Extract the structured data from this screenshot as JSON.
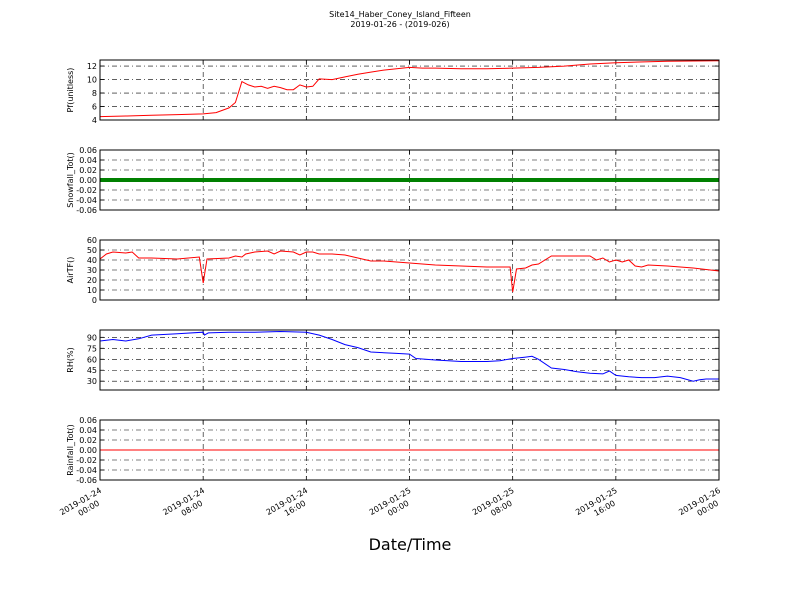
{
  "chart_data": [
    {
      "type": "line",
      "title": "Site14_Haber_Coney_Island_Fifteen",
      "subtitle": "2019-01-26 - (2019-026)",
      "ylabel": "Pf(unitless)",
      "color": "#ff0000",
      "x": [
        "2019-01-24 00:00",
        "2019-01-24 02:00",
        "2019-01-24 04:00",
        "2019-01-24 06:00",
        "2019-01-24 08:00",
        "2019-01-24 09:00",
        "2019-01-24 10:00",
        "2019-01-24 10:30",
        "2019-01-24 11:00",
        "2019-01-24 11:30",
        "2019-01-24 12:00",
        "2019-01-24 12:30",
        "2019-01-24 13:00",
        "2019-01-24 13:30",
        "2019-01-24 14:00",
        "2019-01-24 14:30",
        "2019-01-24 15:00",
        "2019-01-24 15:30",
        "2019-01-24 16:00",
        "2019-01-24 16:30",
        "2019-01-24 17:00",
        "2019-01-24 18:00",
        "2019-01-24 19:00",
        "2019-01-24 20:00",
        "2019-01-24 21:00",
        "2019-01-24 22:00",
        "2019-01-24 23:00",
        "2019-01-25 00:00",
        "2019-01-25 01:00",
        "2019-01-25 02:00",
        "2019-01-25 04:00",
        "2019-01-25 06:00",
        "2019-01-25 08:00",
        "2019-01-25 10:00",
        "2019-01-25 12:00",
        "2019-01-25 14:00",
        "2019-01-25 16:00",
        "2019-01-25 20:00",
        "2019-01-26 00:00"
      ],
      "values": [
        4.5,
        4.6,
        4.7,
        4.8,
        4.9,
        5.1,
        5.8,
        6.6,
        9.7,
        9.2,
        8.9,
        9.0,
        8.7,
        9.0,
        8.8,
        8.5,
        8.5,
        9.2,
        8.9,
        9.0,
        10.1,
        10.0,
        10.4,
        10.8,
        11.1,
        11.4,
        11.6,
        11.8,
        11.7,
        11.7,
        11.6,
        11.6,
        11.7,
        11.8,
        12.0,
        12.3,
        12.5,
        12.7,
        12.8
      ],
      "xlim": [
        "2019-01-24 00:00",
        "2019-01-26 00:00"
      ],
      "ylim": [
        4,
        12.9
      ],
      "yticks": [
        4,
        6,
        8,
        10,
        12
      ],
      "grid": true
    },
    {
      "type": "line",
      "ylabel": "Snowfall_Tot()",
      "color": "#008000",
      "linewidth": 4,
      "x": [
        "2019-01-24 00:00",
        "2019-01-26 00:00"
      ],
      "values": [
        0,
        0
      ],
      "xlim": [
        "2019-01-24 00:00",
        "2019-01-26 00:00"
      ],
      "ylim": [
        -0.06,
        0.06
      ],
      "yticks": [
        0.06,
        0.04,
        0.02,
        {
          "value": 0,
          "label": "0.00"
        },
        -0.02,
        -0.04,
        -0.06
      ],
      "grid": true
    },
    {
      "type": "line",
      "ylabel": "AirTF()",
      "color": "#ff0000",
      "x": [
        "2019-01-24 00:00",
        "2019-01-24 00:30",
        "2019-01-24 01:00",
        "2019-01-24 02:00",
        "2019-01-24 02:30",
        "2019-01-24 03:00",
        "2019-01-24 04:00",
        "2019-01-24 06:00",
        "2019-01-24 07:42",
        "2019-01-24 08:00",
        "2019-01-24 08:18",
        "2019-01-24 10:00",
        "2019-01-24 10:30",
        "2019-01-24 11:00",
        "2019-01-24 11:18",
        "2019-01-24 12:00",
        "2019-01-24 13:00",
        "2019-01-24 13:30",
        "2019-01-24 14:00",
        "2019-01-24 15:00",
        "2019-01-24 15:30",
        "2019-01-24 16:00",
        "2019-01-24 16:30",
        "2019-01-24 17:00",
        "2019-01-24 18:00",
        "2019-01-24 19:00",
        "2019-01-24 20:00",
        "2019-01-24 21:00",
        "2019-01-24 22:00",
        "2019-01-24 23:00",
        "2019-01-25 00:00",
        "2019-01-25 02:00",
        "2019-01-25 04:00",
        "2019-01-25 06:00",
        "2019-01-25 07:48",
        "2019-01-25 08:00",
        "2019-01-25 08:18",
        "2019-01-25 09:00",
        "2019-01-25 09:30",
        "2019-01-25 10:00",
        "2019-01-25 11:00",
        "2019-01-25 12:00",
        "2019-01-25 13:00",
        "2019-01-25 14:00",
        "2019-01-25 14:30",
        "2019-01-25 15:00",
        "2019-01-25 15:30",
        "2019-01-25 16:00",
        "2019-01-25 16:30",
        "2019-01-25 17:00",
        "2019-01-25 17:30",
        "2019-01-25 18:00",
        "2019-01-25 18:30",
        "2019-01-25 20:00",
        "2019-01-25 22:00",
        "2019-01-26 00:00"
      ],
      "values": [
        41,
        46,
        48,
        47,
        48,
        42,
        42,
        41,
        43,
        17,
        41,
        42,
        44,
        43,
        46,
        48,
        49,
        46,
        49,
        48,
        45,
        48,
        48,
        46,
        46,
        45,
        42,
        39,
        39,
        38,
        37,
        35,
        34,
        33,
        33,
        8,
        31,
        32,
        35,
        36,
        44,
        44,
        44,
        44,
        40,
        42,
        38,
        40,
        38,
        40,
        34,
        33,
        35,
        34,
        32,
        29
      ],
      "xlim": [
        "2019-01-24 00:00",
        "2019-01-26 00:00"
      ],
      "ylim": [
        0,
        60
      ],
      "yticks": [
        0,
        10,
        20,
        30,
        40,
        50,
        60
      ],
      "grid": true
    },
    {
      "type": "line",
      "ylabel": "RH(%)",
      "color": "#0000ff",
      "x": [
        "2019-01-24 00:00",
        "2019-01-24 01:00",
        "2019-01-24 02:00",
        "2019-01-24 03:00",
        "2019-01-24 04:00",
        "2019-01-24 06:00",
        "2019-01-24 08:00",
        "2019-01-24 08:06",
        "2019-01-24 08:24",
        "2019-01-24 10:00",
        "2019-01-24 12:00",
        "2019-01-24 14:00",
        "2019-01-24 16:00",
        "2019-01-24 17:00",
        "2019-01-24 18:00",
        "2019-01-24 19:00",
        "2019-01-24 20:00",
        "2019-01-24 21:00",
        "2019-01-24 22:00",
        "2019-01-24 23:00",
        "2019-01-25 00:00",
        "2019-01-25 00:30",
        "2019-01-25 02:00",
        "2019-01-25 04:00",
        "2019-01-25 06:00",
        "2019-01-25 07:00",
        "2019-01-25 08:00",
        "2019-01-25 09:00",
        "2019-01-25 09:30",
        "2019-01-25 10:00",
        "2019-01-25 11:00",
        "2019-01-25 12:00",
        "2019-01-25 13:00",
        "2019-01-25 14:00",
        "2019-01-25 15:00",
        "2019-01-25 15:30",
        "2019-01-25 16:00",
        "2019-01-25 17:00",
        "2019-01-25 18:00",
        "2019-01-25 19:00",
        "2019-01-25 20:00",
        "2019-01-25 21:00",
        "2019-01-25 22:00",
        "2019-01-25 22:30",
        "2019-01-25 23:00",
        "2019-01-26 00:00"
      ],
      "values": [
        85,
        87,
        85,
        88,
        93,
        95,
        97,
        93,
        96,
        97,
        97,
        98,
        97,
        93,
        87,
        80,
        76,
        70,
        69,
        68,
        67,
        61,
        59,
        57,
        57,
        58,
        61,
        63,
        64,
        60,
        48,
        46,
        43,
        41,
        40,
        44,
        38,
        36,
        35,
        35,
        37,
        35,
        30,
        32,
        33,
        33
      ],
      "xlim": [
        "2019-01-24 00:00",
        "2019-01-26 00:00"
      ],
      "ylim": [
        18,
        100
      ],
      "yticks": [
        30,
        45,
        60,
        75,
        90
      ],
      "grid": true
    },
    {
      "type": "line",
      "ylabel": "Rainfall_Tot()",
      "xlabel": "Date/Time",
      "color": "#ff0000",
      "x": [
        "2019-01-24 00:00",
        "2019-01-26 00:00"
      ],
      "values": [
        0,
        0
      ],
      "xlim": [
        "2019-01-24 00:00",
        "2019-01-26 00:00"
      ],
      "ylim": [
        -0.06,
        0.06
      ],
      "yticks": [
        0.06,
        0.04,
        0.02,
        {
          "value": 0,
          "label": "0.00"
        },
        -0.02,
        -0.04,
        -0.06
      ],
      "xticks": [
        {
          "value": "2019-01-24 00:00",
          "label": "2019-01-24\n00:00"
        },
        {
          "value": "2019-01-24 08:00",
          "label": "2019-01-24\n08:00"
        },
        {
          "value": "2019-01-24 16:00",
          "label": "2019-01-24\n16:00"
        },
        {
          "value": "2019-01-25 00:00",
          "label": "2019-01-25\n00:00"
        },
        {
          "value": "2019-01-25 08:00",
          "label": "2019-01-25\n08:00"
        },
        {
          "value": "2019-01-25 16:00",
          "label": "2019-01-25\n16:00"
        },
        {
          "value": "2019-01-26 00:00",
          "label": "2019-01-26\n00:00"
        }
      ],
      "grid": true
    }
  ]
}
